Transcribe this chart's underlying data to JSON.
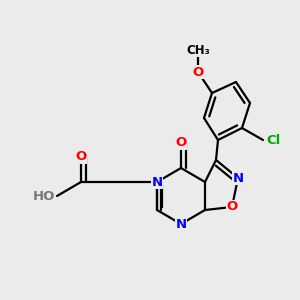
{
  "background_color": "#ebebeb",
  "bond_color": "#000000",
  "atom_colors": {
    "N": "#0000ff",
    "O": "#ff0000",
    "Cl": "#00aa00",
    "C": "#000000",
    "H": "#777777"
  },
  "figsize": [
    3.0,
    3.0
  ],
  "dpi": 100
}
